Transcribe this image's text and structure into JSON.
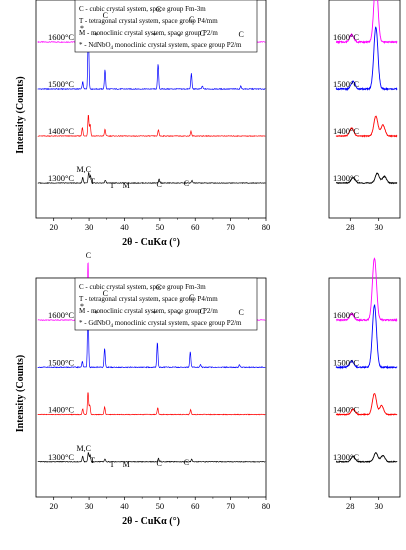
{
  "chart_data": [
    {
      "type": "line",
      "ylabel": "Intensity (Counts)",
      "xlabel": "2θ - CuKα (°)",
      "xlim": [
        15,
        80
      ],
      "xticks": [
        20,
        30,
        40,
        50,
        60,
        70,
        80
      ],
      "legend": [
        "C - cubic crystal system, space group Fm-3m",
        "T - tetragonal crystal system, space group P4/mm",
        "M - monoclinic crystal system, space group P2/m",
        "* - NdNbO4 monoclinic crystal system, space group P2/m"
      ],
      "series": [
        {
          "name": "1600°C",
          "color": "#ff00ff",
          "peaks": [
            [
              28.1,
              0.12
            ],
            [
              29.8,
              1.0
            ],
            [
              34.6,
              0.35
            ],
            [
              49.6,
              0.45
            ],
            [
              59.0,
              0.28
            ],
            [
              62.0,
              0.06
            ],
            [
              73.0,
              0.05
            ]
          ]
        },
        {
          "name": "1500°C",
          "color": "#0000ff",
          "peaks": [
            [
              28.2,
              0.12
            ],
            [
              29.8,
              1.0
            ],
            [
              34.5,
              0.32
            ],
            [
              49.5,
              0.42
            ],
            [
              58.9,
              0.26
            ],
            [
              62.0,
              0.05
            ],
            [
              72.9,
              0.05
            ]
          ]
        },
        {
          "name": "1400°C",
          "color": "#ff0000",
          "peaks": [
            [
              28.1,
              0.18
            ],
            [
              29.8,
              0.45
            ],
            [
              30.3,
              0.25
            ],
            [
              34.5,
              0.14
            ],
            [
              49.6,
              0.13
            ],
            [
              58.8,
              0.1
            ]
          ]
        },
        {
          "name": "1300°C",
          "color": "#000000",
          "peaks": [
            [
              28.2,
              0.12
            ],
            [
              29.9,
              0.22
            ],
            [
              30.4,
              0.15
            ],
            [
              34.6,
              0.06
            ],
            [
              49.8,
              0.08
            ],
            [
              59.1,
              0.05
            ]
          ]
        }
      ],
      "annotations": [
        "C",
        "C",
        "C",
        "C",
        "C",
        "C",
        "*",
        "*",
        "*",
        "*",
        "M,C",
        "T",
        "T",
        "M",
        "C",
        "C"
      ]
    },
    {
      "type": "line",
      "xlim": [
        26.5,
        31.5
      ],
      "xticks": [
        28,
        30
      ],
      "series": [
        {
          "name": "1600°C",
          "color": "#ff00ff"
        },
        {
          "name": "1500°C",
          "color": "#0000ff"
        },
        {
          "name": "1400°C",
          "color": "#ff0000"
        },
        {
          "name": "1300°C",
          "color": "#000000"
        }
      ]
    },
    {
      "type": "line",
      "ylabel": "Intensity (Counts)",
      "xlabel": "2θ - CuKα (°)",
      "xlim": [
        15,
        80
      ],
      "xticks": [
        20,
        30,
        40,
        50,
        60,
        70,
        80
      ],
      "legend": [
        "C - cubic crystal system, space group Fm-3m",
        "T - tetragonal crystal system, space group P4/mm",
        "M - monoclinic crystal system, space group P2/m",
        "* - GdNbO4 monoclinic crystal system, space group P2/m"
      ],
      "series": [
        {
          "name": "1600°C",
          "color": "#ff00ff",
          "peaks": [
            [
              28.1,
              0.1
            ],
            [
              29.7,
              1.0
            ],
            [
              34.4,
              0.32
            ],
            [
              49.3,
              0.45
            ],
            [
              58.6,
              0.28
            ],
            [
              61.5,
              0.05
            ],
            [
              72.6,
              0.05
            ]
          ]
        },
        {
          "name": "1500°C",
          "color": "#0000ff",
          "peaks": [
            [
              28.1,
              0.1
            ],
            [
              29.7,
              1.0
            ],
            [
              34.4,
              0.32
            ],
            [
              49.3,
              0.42
            ],
            [
              58.6,
              0.26
            ],
            [
              61.5,
              0.05
            ],
            [
              72.5,
              0.05
            ]
          ]
        },
        {
          "name": "1400°C",
          "color": "#ff0000",
          "peaks": [
            [
              28.2,
              0.12
            ],
            [
              29.7,
              0.48
            ],
            [
              30.2,
              0.2
            ],
            [
              34.4,
              0.16
            ],
            [
              49.4,
              0.14
            ],
            [
              58.7,
              0.1
            ]
          ]
        },
        {
          "name": "1300°C",
          "color": "#000000",
          "peaks": [
            [
              28.2,
              0.12
            ],
            [
              29.8,
              0.2
            ],
            [
              30.3,
              0.14
            ],
            [
              34.5,
              0.06
            ],
            [
              49.6,
              0.07
            ],
            [
              59.0,
              0.05
            ]
          ]
        }
      ],
      "annotations": [
        "C",
        "C",
        "C",
        "C",
        "C",
        "C",
        "*",
        "*",
        "*",
        "*",
        "M,C",
        "T",
        "T",
        "M",
        "C",
        "C"
      ]
    },
    {
      "type": "line",
      "xlim": [
        26.5,
        31.5
      ],
      "xticks": [
        28,
        30
      ],
      "series": [
        {
          "name": "1600°C",
          "color": "#ff00ff"
        },
        {
          "name": "1500°C",
          "color": "#0000ff"
        },
        {
          "name": "1400°C",
          "color": "#ff0000"
        },
        {
          "name": "1300°C",
          "color": "#000000"
        }
      ]
    }
  ]
}
